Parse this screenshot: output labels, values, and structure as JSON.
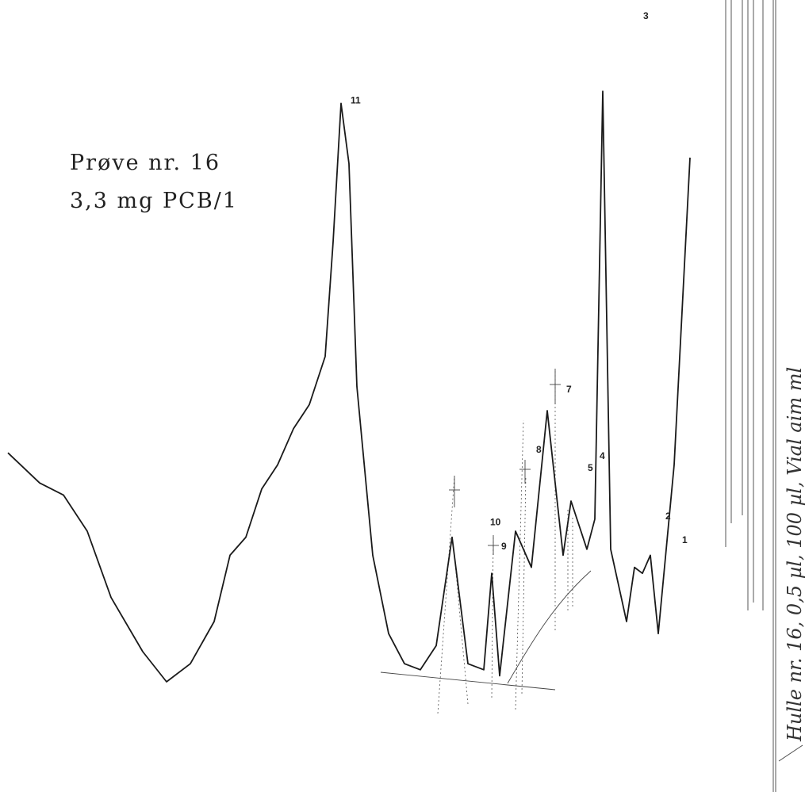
{
  "annotation": {
    "line1": "Prøve nr. 16",
    "line2": "3,3 mg PCB/1"
  },
  "handwritten_note": "Hulle nr. 16, 0,5 µl, 100 µl, Vial aim ml",
  "chart_data": {
    "type": "line",
    "title": "",
    "xlabel": "",
    "ylabel": "",
    "grid": false,
    "legend": "none",
    "peak_labels": [
      "11",
      "10",
      "9",
      "8",
      "7",
      "5",
      "4",
      "3",
      "2",
      "1"
    ],
    "series": [
      {
        "values": [
          [
            0,
            0.38
          ],
          [
            4,
            0.33
          ],
          [
            7,
            0.31
          ],
          [
            10,
            0.25
          ],
          [
            13,
            0.14
          ],
          [
            17,
            0.05
          ],
          [
            20,
            0.0
          ],
          [
            23,
            0.03
          ],
          [
            26,
            0.1
          ],
          [
            28,
            0.21
          ],
          [
            30,
            0.24
          ],
          [
            32,
            0.32
          ],
          [
            34,
            0.36
          ],
          [
            36,
            0.42
          ],
          [
            38,
            0.46
          ],
          [
            40,
            0.54
          ],
          [
            41,
            0.73
          ],
          [
            42,
            0.96
          ],
          [
            43,
            0.86
          ],
          [
            44,
            0.49
          ],
          [
            46,
            0.21
          ],
          [
            48,
            0.08
          ],
          [
            50,
            0.03
          ],
          [
            52,
            0.02
          ],
          [
            54,
            0.06
          ],
          [
            56,
            0.24
          ],
          [
            58,
            0.03
          ],
          [
            60,
            0.02
          ],
          [
            61,
            0.18
          ],
          [
            62,
            0.01
          ],
          [
            64,
            0.25
          ],
          [
            66,
            0.19
          ],
          [
            68,
            0.45
          ],
          [
            70,
            0.21
          ],
          [
            71,
            0.3
          ],
          [
            72,
            0.26
          ],
          [
            73,
            0.22
          ],
          [
            74,
            0.27
          ],
          [
            75,
            0.98
          ],
          [
            76,
            0.22
          ],
          [
            78,
            0.1
          ],
          [
            79,
            0.19
          ],
          [
            80,
            0.18
          ],
          [
            81,
            0.21
          ],
          [
            82,
            0.08
          ],
          [
            84,
            0.36
          ],
          [
            86,
            0.87
          ]
        ]
      }
    ]
  }
}
